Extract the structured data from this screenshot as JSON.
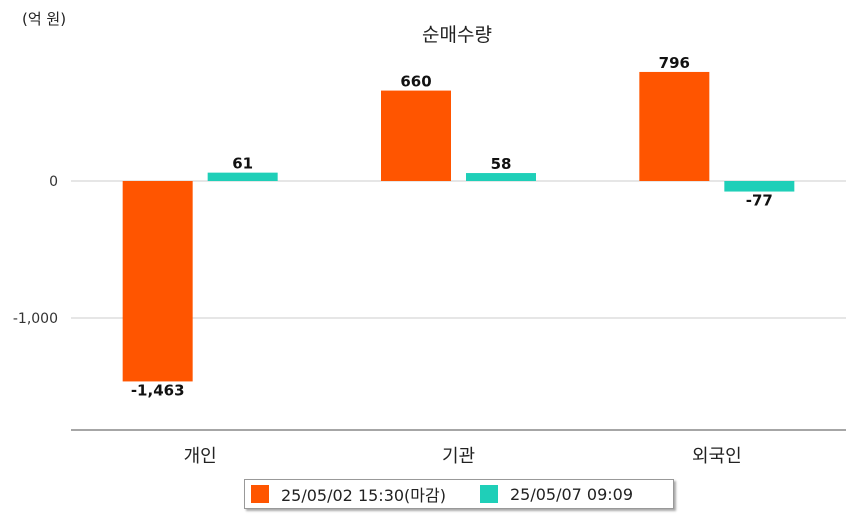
{
  "unit_label": "(억 원)",
  "colors": {
    "series1": "#FF5500",
    "series2": "#1FCFB8",
    "grid": "#cccccc",
    "axis": "#888888"
  },
  "chart_data": {
    "type": "bar",
    "title": "순매수량",
    "categories": [
      "개인",
      "기관",
      "외국인"
    ],
    "series": [
      {
        "name": "25/05/02 15:30(마감)",
        "values": [
          -1463,
          660,
          796
        ]
      },
      {
        "name": "25/05/07 09:09",
        "values": [
          61,
          58,
          -77
        ]
      }
    ],
    "data_labels": [
      [
        "-1,463",
        "660",
        "796"
      ],
      [
        "61",
        "58",
        "-77"
      ]
    ],
    "yticks": [
      0,
      -1000
    ],
    "ytick_labels": [
      "0",
      "-1,000"
    ],
    "ylim": [
      -1825,
      1000
    ],
    "legend_position": "bottom",
    "grid": true
  }
}
